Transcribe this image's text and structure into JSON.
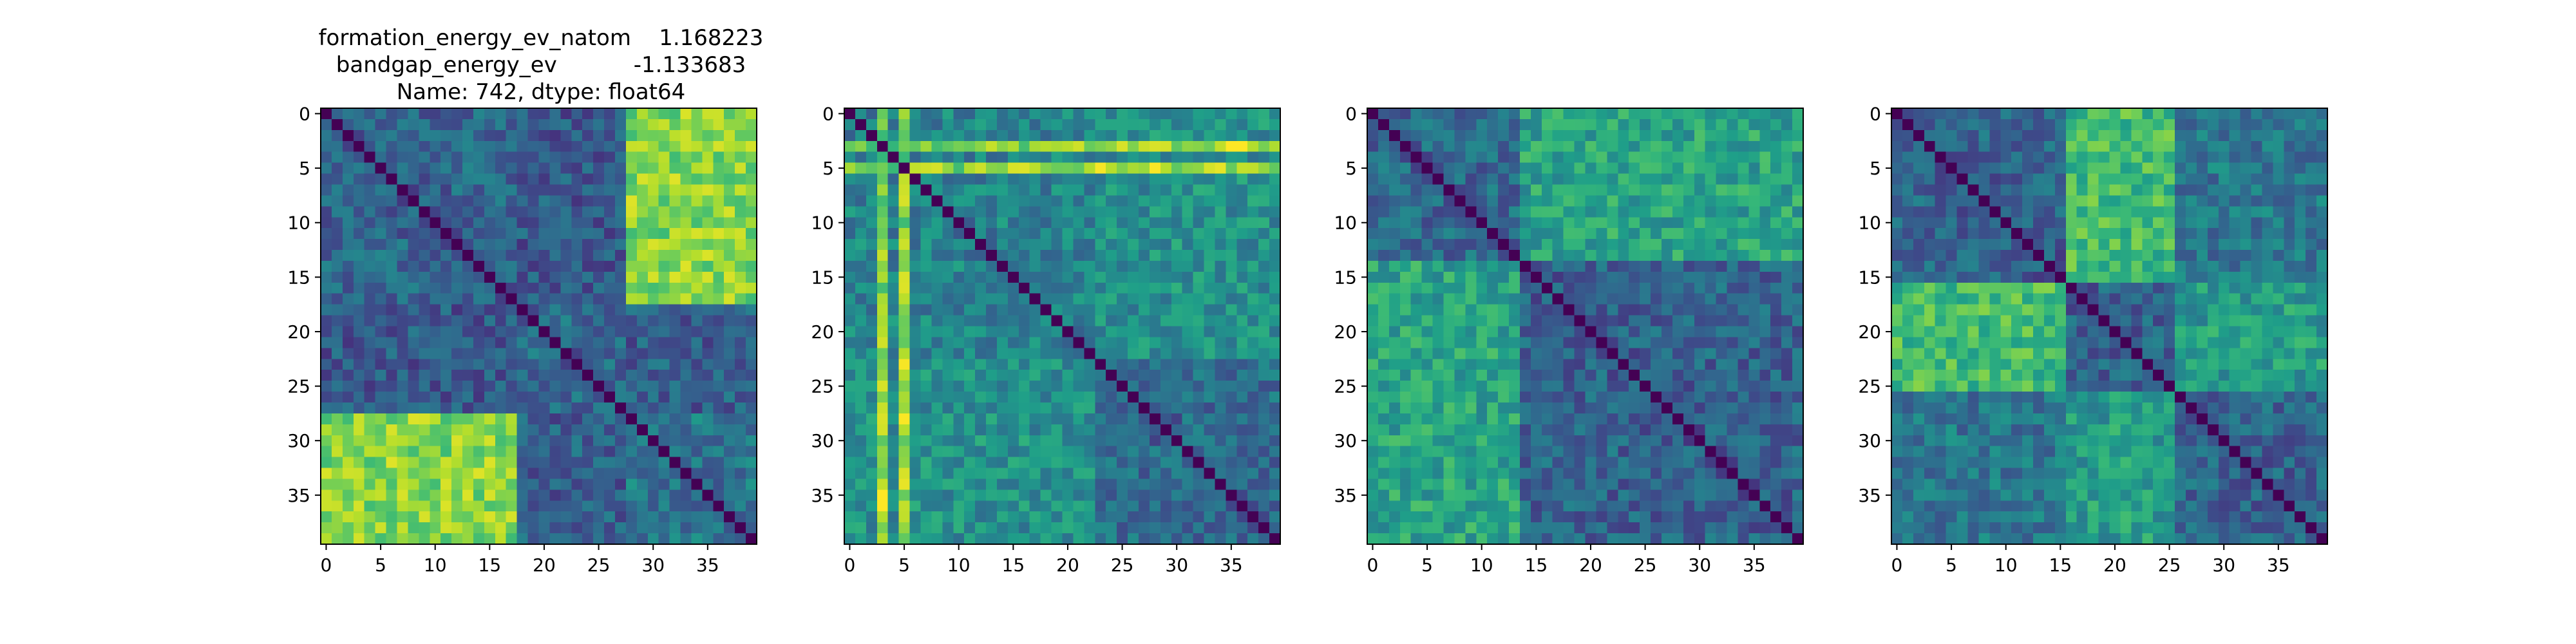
{
  "figure": {
    "title_lines": [
      "formation_energy_ev_natom    1.168223",
      "bandgap_energy_ev           -1.133683",
      "Name: 742, dtype: float64"
    ]
  },
  "chart_data": [
    {
      "type": "heatmap",
      "colormap": "viridis",
      "grid": false,
      "n": 40,
      "value_range": [
        0,
        1
      ],
      "xticks": [
        0,
        5,
        10,
        15,
        20,
        25,
        30,
        35
      ],
      "yticks": [
        0,
        5,
        10,
        15,
        20,
        25,
        30,
        35
      ],
      "xlim": [
        -0.5,
        39.5
      ],
      "ylim": [
        39.5,
        -0.5
      ],
      "blocks": [
        [
          0,
          17
        ],
        [
          18,
          27
        ],
        [
          28,
          39
        ]
      ],
      "block_similarity": [
        [
          0.33,
          0.28,
          0.82
        ],
        [
          0.28,
          0.35,
          0.3
        ],
        [
          0.82,
          0.3,
          0.4
        ]
      ],
      "hot_lines": []
    },
    {
      "type": "heatmap",
      "colormap": "viridis",
      "grid": false,
      "n": 40,
      "value_range": [
        0,
        1
      ],
      "xticks": [
        0,
        5,
        10,
        15,
        20,
        25,
        30,
        35
      ],
      "yticks": [
        0,
        5,
        10,
        15,
        20,
        25,
        30,
        35
      ],
      "xlim": [
        -0.5,
        39.5
      ],
      "ylim": [
        39.5,
        -0.5
      ],
      "blocks": [
        [
          0,
          22
        ],
        [
          23,
          39
        ]
      ],
      "block_similarity": [
        [
          0.45,
          0.5
        ],
        [
          0.5,
          0.35
        ]
      ],
      "hot_lines": [
        3,
        5
      ]
    },
    {
      "type": "heatmap",
      "colormap": "viridis",
      "grid": false,
      "n": 40,
      "value_range": [
        0,
        1
      ],
      "xticks": [
        0,
        5,
        10,
        15,
        20,
        25,
        30,
        35
      ],
      "yticks": [
        0,
        5,
        10,
        15,
        20,
        25,
        30,
        35
      ],
      "xlim": [
        -0.5,
        39.5
      ],
      "ylim": [
        39.5,
        -0.5
      ],
      "blocks": [
        [
          0,
          13
        ],
        [
          14,
          39
        ]
      ],
      "block_similarity": [
        [
          0.35,
          0.58
        ],
        [
          0.58,
          0.32
        ]
      ],
      "hot_lines": []
    },
    {
      "type": "heatmap",
      "colormap": "viridis",
      "grid": false,
      "n": 40,
      "value_range": [
        0,
        1
      ],
      "xticks": [
        0,
        5,
        10,
        15,
        20,
        25,
        30,
        35
      ],
      "yticks": [
        0,
        5,
        10,
        15,
        20,
        25,
        30,
        35
      ],
      "xlim": [
        -0.5,
        39.5
      ],
      "ylim": [
        39.5,
        -0.5
      ],
      "blocks": [
        [
          0,
          15
        ],
        [
          16,
          25
        ],
        [
          26,
          39
        ]
      ],
      "block_similarity": [
        [
          0.32,
          0.68,
          0.4
        ],
        [
          0.68,
          0.33,
          0.55
        ],
        [
          0.4,
          0.55,
          0.33
        ]
      ],
      "hot_lines": []
    }
  ]
}
